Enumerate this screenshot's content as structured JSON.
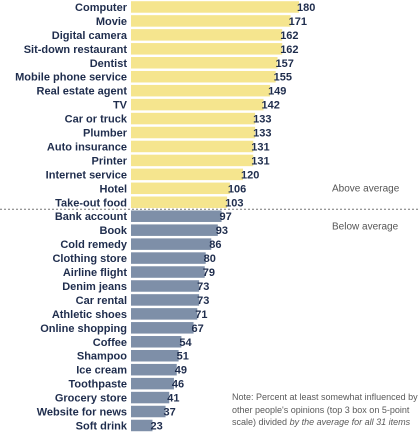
{
  "chart_data": {
    "type": "bar",
    "orientation": "horizontal",
    "categories": [
      "Computer",
      "Movie",
      "Digital camera",
      "Sit-down restaurant",
      "Dentist",
      "Mobile phone service",
      "Real estate agent",
      "TV",
      "Car or truck",
      "Plumber",
      "Auto insurance",
      "Printer",
      "Internet service",
      "Hotel",
      "Take-out food",
      "Bank account",
      "Book",
      "Cold remedy",
      "Clothing store",
      "Airline flight",
      "Denim jeans",
      "Car rental",
      "Athletic shoes",
      "Online shopping",
      "Coffee",
      "Shampoo",
      "Ice cream",
      "Toothpaste",
      "Grocery store",
      "Website for news",
      "Soft drink"
    ],
    "values": [
      180,
      171,
      162,
      162,
      157,
      155,
      149,
      142,
      133,
      133,
      131,
      131,
      120,
      106,
      103,
      97,
      93,
      86,
      80,
      79,
      73,
      73,
      71,
      67,
      54,
      51,
      49,
      46,
      41,
      37,
      23
    ],
    "groups": [
      {
        "name": "Above average",
        "start": 0,
        "end": 14,
        "color": "#f5e58e"
      },
      {
        "name": "Below average",
        "start": 15,
        "end": 30,
        "color": "#7e8fa8"
      }
    ],
    "xlim": [
      0,
      180
    ],
    "grid": false,
    "legend": "right"
  },
  "note": {
    "prefix": "Note:  Percent at least somewhat influenced by other people's opinions (top 3 box on 5-point scale)",
    "connector": "divided",
    "italic": "by the average for all 31 items"
  }
}
